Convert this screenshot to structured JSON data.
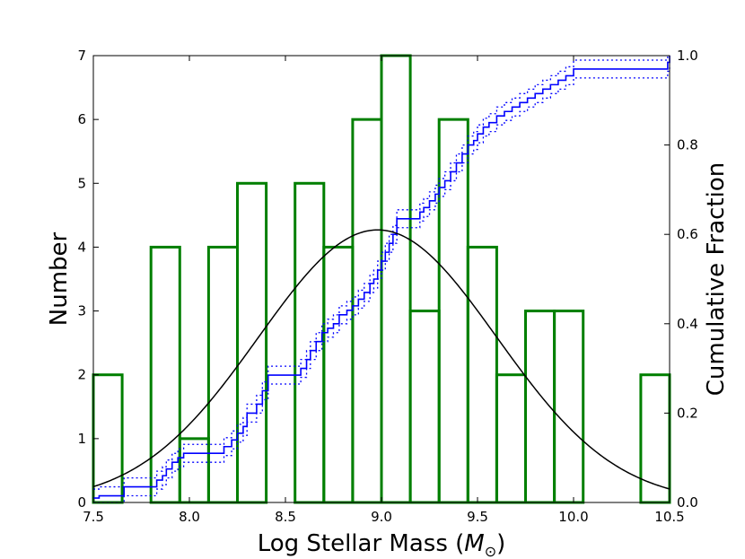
{
  "chart_data": {
    "type": "histogram",
    "xlabel_main": "Log Stellar Mass (",
    "xlabel_symbol": "M",
    "xlabel_subscript": "⊙",
    "xlabel_close": ")",
    "ylabel_left": "Number",
    "ylabel_right": "Cumulative Fraction",
    "xlim": [
      7.5,
      10.5
    ],
    "ylim_left": [
      0,
      7
    ],
    "ylim_right": [
      0.0,
      1.0
    ],
    "x_ticks": [
      "7.5",
      "8.0",
      "8.5",
      "9.0",
      "9.5",
      "10.0",
      "10.5"
    ],
    "y_left_ticks": [
      "0",
      "1",
      "2",
      "3",
      "4",
      "5",
      "6",
      "7"
    ],
    "y_right_ticks": [
      "0.0",
      "0.2",
      "0.4",
      "0.6",
      "0.8",
      "1.0"
    ],
    "histogram": {
      "color": "#007f00",
      "bin_edges": [
        7.5,
        7.65,
        7.8,
        7.95,
        8.1,
        8.25,
        8.4,
        8.55,
        8.7,
        8.85,
        9.0,
        9.15,
        9.3,
        9.45,
        9.6,
        9.75,
        9.9,
        10.05,
        10.2,
        10.35,
        10.5
      ],
      "counts": [
        2,
        0,
        4,
        1,
        4,
        5,
        0,
        5,
        4,
        6,
        7,
        3,
        6,
        4,
        2,
        3,
        3,
        0,
        0,
        2
      ]
    },
    "gaussian": {
      "color": "#000000",
      "mean": 8.98,
      "sigma": 0.62,
      "peak": 4.27
    },
    "cumulative": {
      "color": "#0000ff",
      "x": [
        7.5,
        7.53,
        7.66,
        7.8,
        7.83,
        7.86,
        7.88,
        7.91,
        7.94,
        7.97,
        8.15,
        8.18,
        8.22,
        8.25,
        8.28,
        8.3,
        8.35,
        8.38,
        8.41,
        8.55,
        8.58,
        8.61,
        8.63,
        8.66,
        8.69,
        8.72,
        8.75,
        8.78,
        8.82,
        8.85,
        8.88,
        8.91,
        8.94,
        8.96,
        8.98,
        9.0,
        9.02,
        9.04,
        9.06,
        9.08,
        9.16,
        9.2,
        9.22,
        9.25,
        9.28,
        9.3,
        9.33,
        9.36,
        9.39,
        9.42,
        9.45,
        9.48,
        9.5,
        9.53,
        9.56,
        9.6,
        9.64,
        9.68,
        9.72,
        9.76,
        9.8,
        9.84,
        9.88,
        9.92,
        9.96,
        10.0,
        10.46,
        10.49,
        10.5
      ],
      "y": [
        0.01,
        0.015,
        0.035,
        0.035,
        0.05,
        0.06,
        0.075,
        0.09,
        0.1,
        0.11,
        0.11,
        0.125,
        0.14,
        0.155,
        0.17,
        0.2,
        0.22,
        0.25,
        0.285,
        0.285,
        0.3,
        0.32,
        0.34,
        0.36,
        0.38,
        0.39,
        0.4,
        0.42,
        0.43,
        0.44,
        0.455,
        0.47,
        0.49,
        0.5,
        0.52,
        0.54,
        0.56,
        0.58,
        0.6,
        0.635,
        0.635,
        0.65,
        0.66,
        0.675,
        0.69,
        0.705,
        0.72,
        0.74,
        0.76,
        0.78,
        0.8,
        0.81,
        0.825,
        0.84,
        0.85,
        0.865,
        0.875,
        0.885,
        0.895,
        0.905,
        0.915,
        0.925,
        0.935,
        0.945,
        0.955,
        0.97,
        0.97,
        0.985,
        1.0
      ],
      "band": 0.02
    }
  }
}
